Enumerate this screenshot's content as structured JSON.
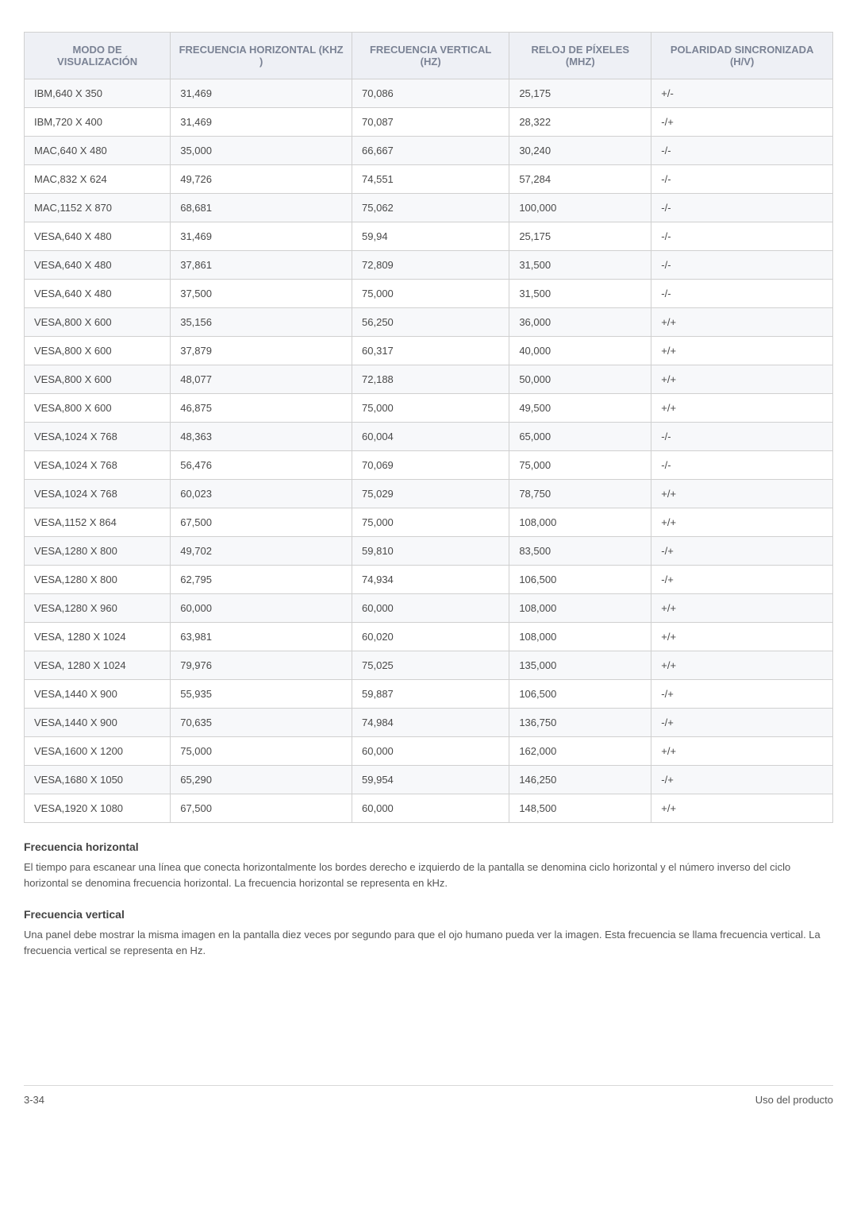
{
  "table": {
    "header_bg": "#eef0f5",
    "header_color": "#7a8294",
    "row_odd_bg": "#f7f8fa",
    "row_even_bg": "#ffffff",
    "border_color": "#d0d0d0",
    "columns": [
      "MODO DE VISUALIZACIÓN",
      "FRECUENCIA HORIZONTAL (KHZ )",
      "FRECUENCIA VERTICAL (HZ)",
      "RELOJ DE PÍXELES (MHZ)",
      "POLARIDAD SINCRONIZADA (H/V)"
    ],
    "rows": [
      [
        "IBM,640 X 350",
        "31,469",
        "70,086",
        "25,175",
        "+/-"
      ],
      [
        "IBM,720 X 400",
        "31,469",
        "70,087",
        "28,322",
        "-/+"
      ],
      [
        "MAC,640 X 480",
        "35,000",
        "66,667",
        "30,240",
        "-/-"
      ],
      [
        "MAC,832 X 624",
        "49,726",
        "74,551",
        "57,284",
        "-/-"
      ],
      [
        "MAC,1152 X 870",
        "68,681",
        "75,062",
        "100,000",
        "-/-"
      ],
      [
        "VESA,640 X 480",
        "31,469",
        "59,94",
        "25,175",
        "-/-"
      ],
      [
        "VESA,640 X 480",
        "37,861",
        "72,809",
        "31,500",
        "-/-"
      ],
      [
        "VESA,640 X 480",
        "37,500",
        "75,000",
        "31,500",
        "-/-"
      ],
      [
        "VESA,800 X 600",
        "35,156",
        "56,250",
        "36,000",
        "+/+"
      ],
      [
        "VESA,800 X 600",
        "37,879",
        "60,317",
        "40,000",
        "+/+"
      ],
      [
        "VESA,800 X 600",
        "48,077",
        "72,188",
        "50,000",
        "+/+"
      ],
      [
        "VESA,800 X 600",
        "46,875",
        "75,000",
        "49,500",
        "+/+"
      ],
      [
        "VESA,1024 X 768",
        "48,363",
        "60,004",
        "65,000",
        "-/-"
      ],
      [
        "VESA,1024 X 768",
        "56,476",
        "70,069",
        "75,000",
        "-/-"
      ],
      [
        "VESA,1024 X 768",
        "60,023",
        "75,029",
        "78,750",
        "+/+"
      ],
      [
        "VESA,1152 X 864",
        "67,500",
        "75,000",
        "108,000",
        "+/+"
      ],
      [
        "VESA,1280 X 800",
        "49,702",
        "59,810",
        "83,500",
        "-/+"
      ],
      [
        "VESA,1280 X 800",
        "62,795",
        "74,934",
        "106,500",
        "-/+"
      ],
      [
        "VESA,1280 X 960",
        "60,000",
        "60,000",
        "108,000",
        "+/+"
      ],
      [
        "VESA, 1280 X 1024",
        "63,981",
        "60,020",
        "108,000",
        "+/+"
      ],
      [
        "VESA, 1280 X 1024",
        "79,976",
        "75,025",
        "135,000",
        "+/+"
      ],
      [
        "VESA,1440 X 900",
        "55,935",
        "59,887",
        "106,500",
        "-/+"
      ],
      [
        "VESA,1440 X 900",
        "70,635",
        "74,984",
        "136,750",
        "-/+"
      ],
      [
        "VESA,1600 X 1200",
        "75,000",
        "60,000",
        "162,000",
        "+/+"
      ],
      [
        "VESA,1680 X 1050",
        "65,290",
        "59,954",
        "146,250",
        "-/+"
      ],
      [
        "VESA,1920 X 1080",
        "67,500",
        "60,000",
        "148,500",
        "+/+"
      ]
    ]
  },
  "sections": {
    "h1": "Frecuencia horizontal",
    "p1": "El tiempo para escanear una línea que conecta horizontalmente los bordes derecho e izquierdo de la pantalla se denomina ciclo horizontal y el número inverso del ciclo horizontal se denomina frecuencia horizontal. La frecuencia horizontal se representa en kHz.",
    "h2": "Frecuencia vertical",
    "p2": "Una panel debe mostrar la misma imagen en la pantalla diez veces por segundo para que el ojo humano pueda ver la imagen. Esta frecuencia se llama frecuencia vertical. La frecuencia vertical se representa en Hz."
  },
  "footer": {
    "left": "3-34",
    "right": "Uso del producto"
  }
}
